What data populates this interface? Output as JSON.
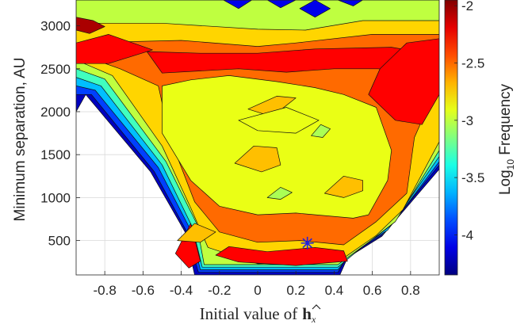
{
  "chart_data": {
    "type": "heatmap",
    "subtype": "filled-contour",
    "xlabel": "Initial value of",
    "xlabel_symbol": "h",
    "xlabel_symbol_subscript": "x",
    "ylabel": "Minimum separation, AU",
    "colorbar_label_prefix": "Log",
    "colorbar_label_subscript": "10",
    "colorbar_label_suffix": " Frequency",
    "xlim": [
      -0.95,
      0.95
    ],
    "ylim": [
      100,
      3300
    ],
    "clim": [
      -4.35,
      -1.95
    ],
    "x_ticks": [
      -0.8,
      -0.6,
      -0.4,
      -0.2,
      0,
      0.2,
      0.4,
      0.6,
      0.8
    ],
    "x_tick_labels": [
      "-0.8",
      "-0.6",
      "-0.4",
      "-0.2",
      "0",
      "0.2",
      "0.4",
      "0.6",
      "0.8"
    ],
    "y_ticks": [
      500,
      1000,
      1500,
      2000,
      2500,
      3000
    ],
    "y_tick_labels": [
      "500",
      "1000",
      "1500",
      "2000",
      "2500",
      "3000"
    ],
    "colorbar_ticks": [
      -4,
      -3.5,
      -3,
      -2.5,
      -2
    ],
    "colorbar_tick_labels": [
      "-4",
      "-3.5",
      "-3",
      "-2.5",
      "-2"
    ],
    "colormap": "jet",
    "grid": true,
    "marker": {
      "symbol": "asterisk",
      "x": 0.26,
      "y": 470,
      "color": "#2020e0"
    },
    "contour_regions": [
      {
        "level": -4.2,
        "points": [
          [
            -0.9,
            2200
          ],
          [
            -0.56,
            1300
          ],
          [
            -0.38,
            600
          ],
          [
            -0.33,
            100
          ],
          [
            0.43,
            100
          ],
          [
            0.47,
            300
          ],
          [
            0.65,
            550
          ],
          [
            0.95,
            1330
          ],
          [
            0.95,
            3300
          ],
          [
            -0.95,
            3300
          ],
          [
            -0.95,
            2000
          ]
        ]
      },
      {
        "level": -3.9,
        "points": [
          [
            -0.87,
            2200
          ],
          [
            -0.54,
            1300
          ],
          [
            -0.37,
            600
          ],
          [
            -0.31,
            130
          ],
          [
            0.42,
            130
          ],
          [
            0.47,
            320
          ],
          [
            0.66,
            580
          ],
          [
            0.95,
            1380
          ],
          [
            0.95,
            3300
          ],
          [
            -0.95,
            3300
          ],
          [
            -0.95,
            2200
          ]
        ]
      },
      {
        "level": -3.6,
        "points": [
          [
            -0.85,
            2250
          ],
          [
            -0.52,
            1350
          ],
          [
            -0.35,
            620
          ],
          [
            -0.3,
            160
          ],
          [
            0.42,
            160
          ],
          [
            0.5,
            380
          ],
          [
            0.68,
            620
          ],
          [
            0.95,
            1420
          ],
          [
            0.95,
            3300
          ],
          [
            -0.95,
            3300
          ],
          [
            -0.95,
            2300
          ]
        ]
      },
      {
        "level": -3.3,
        "points": [
          [
            -0.82,
            2300
          ],
          [
            -0.5,
            1380
          ],
          [
            -0.34,
            650
          ],
          [
            -0.29,
            190
          ],
          [
            0.42,
            190
          ],
          [
            0.55,
            430
          ],
          [
            0.7,
            680
          ],
          [
            0.95,
            1480
          ],
          [
            0.95,
            3300
          ],
          [
            -0.95,
            3300
          ],
          [
            -0.95,
            2400
          ]
        ]
      },
      {
        "level": -3.0,
        "points": [
          [
            -0.8,
            2380
          ],
          [
            -0.48,
            1420
          ],
          [
            -0.32,
            700
          ],
          [
            -0.28,
            220
          ],
          [
            0.42,
            220
          ],
          [
            0.58,
            480
          ],
          [
            0.72,
            720
          ],
          [
            0.95,
            1550
          ],
          [
            0.95,
            3300
          ],
          [
            -0.95,
            3300
          ],
          [
            -0.95,
            2500
          ]
        ]
      },
      {
        "level": -2.75,
        "points": [
          [
            -0.76,
            2420
          ],
          [
            -0.5,
            1600
          ],
          [
            -0.35,
            880
          ],
          [
            -0.26,
            420
          ],
          [
            0,
            230
          ],
          [
            0.42,
            250
          ],
          [
            0.62,
            560
          ],
          [
            0.76,
            860
          ],
          [
            0.95,
            1650
          ],
          [
            0.95,
            3060
          ],
          [
            0.55,
            3060
          ],
          [
            0.25,
            2950
          ],
          [
            0,
            2960
          ],
          [
            -0.5,
            3030
          ],
          [
            -0.95,
            3030
          ],
          [
            -0.95,
            2600
          ]
        ]
      },
      {
        "level": -2.5,
        "points": [
          [
            -0.72,
            2500
          ],
          [
            -0.52,
            2300
          ],
          [
            -0.46,
            1700
          ],
          [
            -0.33,
            950
          ],
          [
            -0.2,
            600
          ],
          [
            0,
            480
          ],
          [
            0.22,
            500
          ],
          [
            0.45,
            450
          ],
          [
            0.62,
            720
          ],
          [
            0.78,
            1050
          ],
          [
            0.82,
            1700
          ],
          [
            0.9,
            2100
          ],
          [
            0.95,
            2400
          ],
          [
            0.95,
            2900
          ],
          [
            0.6,
            2900
          ],
          [
            0.2,
            2800
          ],
          [
            0,
            2760
          ],
          [
            -0.4,
            2830
          ],
          [
            -0.95,
            2800
          ],
          [
            -0.95,
            2680
          ]
        ]
      },
      {
        "level": -2.25,
        "points": [
          [
            -0.58,
            2700
          ],
          [
            -0.5,
            2450
          ],
          [
            -0.1,
            2500
          ],
          [
            0.15,
            2460
          ],
          [
            0.4,
            2500
          ],
          [
            0.63,
            2500
          ],
          [
            0.8,
            2450
          ],
          [
            0.88,
            2680
          ],
          [
            0.7,
            2750
          ],
          [
            0.3,
            2730
          ],
          [
            0,
            2680
          ],
          [
            -0.3,
            2680
          ]
        ]
      },
      {
        "level": -2.25,
        "points": [
          [
            -0.95,
            2800
          ],
          [
            -0.78,
            2900
          ],
          [
            -0.55,
            2720
          ],
          [
            -0.78,
            2560
          ],
          [
            -0.95,
            2560
          ]
        ]
      },
      {
        "level": -2.25,
        "points": [
          [
            0.58,
            2200
          ],
          [
            0.72,
            1900
          ],
          [
            0.86,
            1850
          ],
          [
            0.95,
            2200
          ],
          [
            0.95,
            2850
          ],
          [
            0.78,
            2800
          ],
          [
            0.64,
            2500
          ]
        ]
      },
      {
        "level": -2.25,
        "points": [
          [
            -0.15,
            430
          ],
          [
            0.05,
            370
          ],
          [
            0.3,
            420
          ],
          [
            0.45,
            380
          ],
          [
            0.47,
            260
          ],
          [
            0.2,
            210
          ],
          [
            -0.1,
            250
          ],
          [
            -0.22,
            330
          ]
        ]
      },
      {
        "level": -2.25,
        "points": [
          [
            -0.43,
            350
          ],
          [
            -0.35,
            700
          ],
          [
            -0.3,
            260
          ],
          [
            -0.36,
            180
          ]
        ]
      },
      {
        "level": -2.05,
        "points": [
          [
            -0.95,
            3100
          ],
          [
            -0.86,
            3060
          ],
          [
            -0.8,
            2990
          ],
          [
            -0.88,
            2910
          ],
          [
            -0.95,
            2950
          ]
        ]
      },
      {
        "level": -2.9,
        "points": [
          [
            -0.5,
            2300
          ],
          [
            -0.5,
            1750
          ],
          [
            -0.35,
            1200
          ],
          [
            -0.2,
            900
          ],
          [
            0.0,
            800
          ],
          [
            0.2,
            820
          ],
          [
            0.5,
            760
          ],
          [
            0.58,
            800
          ],
          [
            0.68,
            1200
          ],
          [
            0.7,
            1550
          ],
          [
            0.62,
            2050
          ],
          [
            0.45,
            2200
          ],
          [
            0.3,
            2280
          ],
          [
            0.1,
            2350
          ],
          [
            -0.15,
            2420
          ],
          [
            -0.35,
            2370
          ]
        ]
      },
      {
        "level": -2.7,
        "points": [
          [
            -0.05,
            2030
          ],
          [
            0.1,
            2180
          ],
          [
            0.2,
            2160
          ],
          [
            0.12,
            2020
          ],
          [
            0.05,
            1960
          ]
        ]
      },
      {
        "level": -2.7,
        "points": [
          [
            -0.12,
            1400
          ],
          [
            -0.02,
            1600
          ],
          [
            0.1,
            1580
          ],
          [
            0.12,
            1380
          ],
          [
            0.02,
            1300
          ]
        ]
      },
      {
        "level": -2.7,
        "points": [
          [
            0.35,
            1050
          ],
          [
            0.45,
            1250
          ],
          [
            0.55,
            1200
          ],
          [
            0.55,
            1080
          ],
          [
            0.45,
            1000
          ]
        ]
      },
      {
        "level": -2.9,
        "points": [
          [
            -0.1,
            1900
          ],
          [
            0.15,
            2050
          ],
          [
            0.32,
            1900
          ],
          [
            0.2,
            1750
          ],
          [
            0.0,
            1780
          ]
        ]
      },
      {
        "level": -2.7,
        "points": [
          [
            -0.42,
            500
          ],
          [
            -0.33,
            700
          ],
          [
            -0.22,
            600
          ],
          [
            -0.3,
            480
          ]
        ]
      },
      {
        "level": -3.05,
        "points": [
          [
            0.28,
            1720
          ],
          [
            0.33,
            1850
          ],
          [
            0.38,
            1800
          ],
          [
            0.34,
            1700
          ]
        ]
      },
      {
        "level": -3.05,
        "points": [
          [
            0.05,
            1000
          ],
          [
            0.12,
            1120
          ],
          [
            0.18,
            1060
          ],
          [
            0.12,
            980
          ]
        ]
      },
      {
        "level": -4.1,
        "points": [
          [
            -0.18,
            3300
          ],
          [
            -0.1,
            3200
          ],
          [
            -0.03,
            3300
          ]
        ]
      },
      {
        "level": -4.1,
        "points": [
          [
            0.05,
            3300
          ],
          [
            0.12,
            3210
          ],
          [
            0.2,
            3300
          ]
        ]
      },
      {
        "level": -4.1,
        "points": [
          [
            0.22,
            3200
          ],
          [
            0.3,
            3100
          ],
          [
            0.38,
            3200
          ],
          [
            0.3,
            3300
          ]
        ]
      },
      {
        "level": -4.1,
        "points": [
          [
            0.42,
            3300
          ],
          [
            0.5,
            3230
          ],
          [
            0.55,
            3300
          ]
        ]
      }
    ]
  }
}
